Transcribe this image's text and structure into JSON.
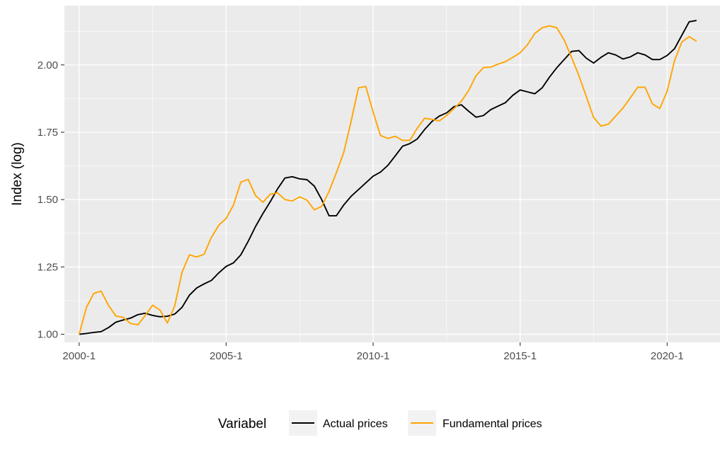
{
  "chart_data": {
    "type": "line",
    "title": "",
    "xlabel": "",
    "ylabel": "Index (log)",
    "xlim": [
      1999.5,
      2021.8
    ],
    "ylim": [
      0.97,
      2.22
    ],
    "x_ticks": [
      2000,
      2005,
      2010,
      2015,
      2020
    ],
    "x_tick_labels": [
      "2000-1",
      "2005-1",
      "2010-1",
      "2015-1",
      "2020-1"
    ],
    "y_ticks": [
      1.0,
      1.25,
      1.5,
      1.75,
      2.0
    ],
    "y_tick_labels": [
      "1.00",
      "1.25",
      "1.50",
      "1.75",
      "2.00"
    ],
    "grid": true,
    "legend": {
      "position": "bottom",
      "title": "Variabel",
      "entries": [
        "Actual prices",
        "Fundamental prices"
      ]
    },
    "series": [
      {
        "name": "Actual prices",
        "color": "#000000",
        "x": [
          2000.0,
          2000.25,
          2000.5,
          2000.75,
          2001.0,
          2001.25,
          2001.5,
          2001.75,
          2002.0,
          2002.25,
          2002.5,
          2002.75,
          2003.0,
          2003.25,
          2003.5,
          2003.75,
          2004.0,
          2004.25,
          2004.5,
          2004.75,
          2005.0,
          2005.25,
          2005.5,
          2005.75,
          2006.0,
          2006.25,
          2006.5,
          2006.75,
          2007.0,
          2007.25,
          2007.5,
          2007.75,
          2008.0,
          2008.25,
          2008.5,
          2008.75,
          2009.0,
          2009.25,
          2009.5,
          2009.75,
          2010.0,
          2010.25,
          2010.5,
          2010.75,
          2011.0,
          2011.25,
          2011.5,
          2011.75,
          2012.0,
          2012.25,
          2012.5,
          2012.75,
          2013.0,
          2013.25,
          2013.5,
          2013.75,
          2014.0,
          2014.25,
          2014.5,
          2014.75,
          2015.0,
          2015.25,
          2015.5,
          2015.75,
          2016.0,
          2016.25,
          2016.5,
          2016.75,
          2017.0,
          2017.25,
          2017.5,
          2017.75,
          2018.0,
          2018.25,
          2018.5,
          2018.75,
          2019.0,
          2019.25,
          2019.5,
          2019.75,
          2020.0,
          2020.25,
          2020.5,
          2020.75,
          2021.0
        ],
        "y": [
          1.0,
          1.003,
          1.007,
          1.01,
          1.025,
          1.045,
          1.053,
          1.06,
          1.073,
          1.078,
          1.07,
          1.065,
          1.067,
          1.075,
          1.1,
          1.145,
          1.172,
          1.187,
          1.2,
          1.228,
          1.252,
          1.265,
          1.295,
          1.345,
          1.4,
          1.448,
          1.492,
          1.54,
          1.58,
          1.585,
          1.577,
          1.574,
          1.55,
          1.5,
          1.44,
          1.44,
          1.48,
          1.512,
          1.537,
          1.562,
          1.587,
          1.602,
          1.627,
          1.662,
          1.698,
          1.708,
          1.725,
          1.76,
          1.79,
          1.81,
          1.822,
          1.845,
          1.852,
          1.828,
          1.806,
          1.812,
          1.834,
          1.847,
          1.86,
          1.887,
          1.907,
          1.9,
          1.893,
          1.915,
          1.955,
          1.99,
          2.02,
          2.05,
          2.053,
          2.025,
          2.007,
          2.028,
          2.045,
          2.037,
          2.022,
          2.03,
          2.045,
          2.037,
          2.02,
          2.02,
          2.035,
          2.06,
          2.11,
          2.16,
          2.165
        ]
      },
      {
        "name": "Fundamental prices",
        "color": "#FFA500",
        "x": [
          2000.0,
          2000.25,
          2000.5,
          2000.75,
          2001.0,
          2001.25,
          2001.5,
          2001.75,
          2002.0,
          2002.25,
          2002.5,
          2002.75,
          2003.0,
          2003.25,
          2003.5,
          2003.75,
          2004.0,
          2004.25,
          2004.5,
          2004.75,
          2005.0,
          2005.25,
          2005.5,
          2005.75,
          2006.0,
          2006.25,
          2006.5,
          2006.75,
          2007.0,
          2007.25,
          2007.5,
          2007.75,
          2008.0,
          2008.25,
          2008.5,
          2008.75,
          2009.0,
          2009.25,
          2009.5,
          2009.75,
          2010.0,
          2010.25,
          2010.5,
          2010.75,
          2011.0,
          2011.25,
          2011.5,
          2011.75,
          2012.0,
          2012.25,
          2012.5,
          2012.75,
          2013.0,
          2013.25,
          2013.5,
          2013.75,
          2014.0,
          2014.25,
          2014.5,
          2014.75,
          2015.0,
          2015.25,
          2015.5,
          2015.75,
          2016.0,
          2016.25,
          2016.5,
          2016.75,
          2017.0,
          2017.25,
          2017.5,
          2017.75,
          2018.0,
          2018.25,
          2018.5,
          2018.75,
          2019.0,
          2019.25,
          2019.5,
          2019.75,
          2020.0,
          2020.25,
          2020.5,
          2020.75,
          2021.0
        ],
        "y": [
          1.0,
          1.1,
          1.152,
          1.16,
          1.107,
          1.068,
          1.063,
          1.04,
          1.035,
          1.07,
          1.108,
          1.09,
          1.042,
          1.105,
          1.23,
          1.295,
          1.287,
          1.297,
          1.36,
          1.405,
          1.43,
          1.48,
          1.565,
          1.575,
          1.515,
          1.49,
          1.52,
          1.525,
          1.5,
          1.495,
          1.51,
          1.498,
          1.462,
          1.475,
          1.53,
          1.6,
          1.675,
          1.79,
          1.915,
          1.92,
          1.825,
          1.738,
          1.727,
          1.735,
          1.72,
          1.72,
          1.765,
          1.802,
          1.798,
          1.792,
          1.812,
          1.838,
          1.865,
          1.905,
          1.96,
          1.99,
          1.992,
          2.003,
          2.012,
          2.028,
          2.045,
          2.075,
          2.117,
          2.138,
          2.145,
          2.138,
          2.092,
          2.028,
          1.96,
          1.883,
          1.805,
          1.773,
          1.78,
          1.81,
          1.84,
          1.878,
          1.917,
          1.917,
          1.855,
          1.838,
          1.902,
          2.015,
          2.085,
          2.105,
          2.088
        ]
      }
    ]
  }
}
